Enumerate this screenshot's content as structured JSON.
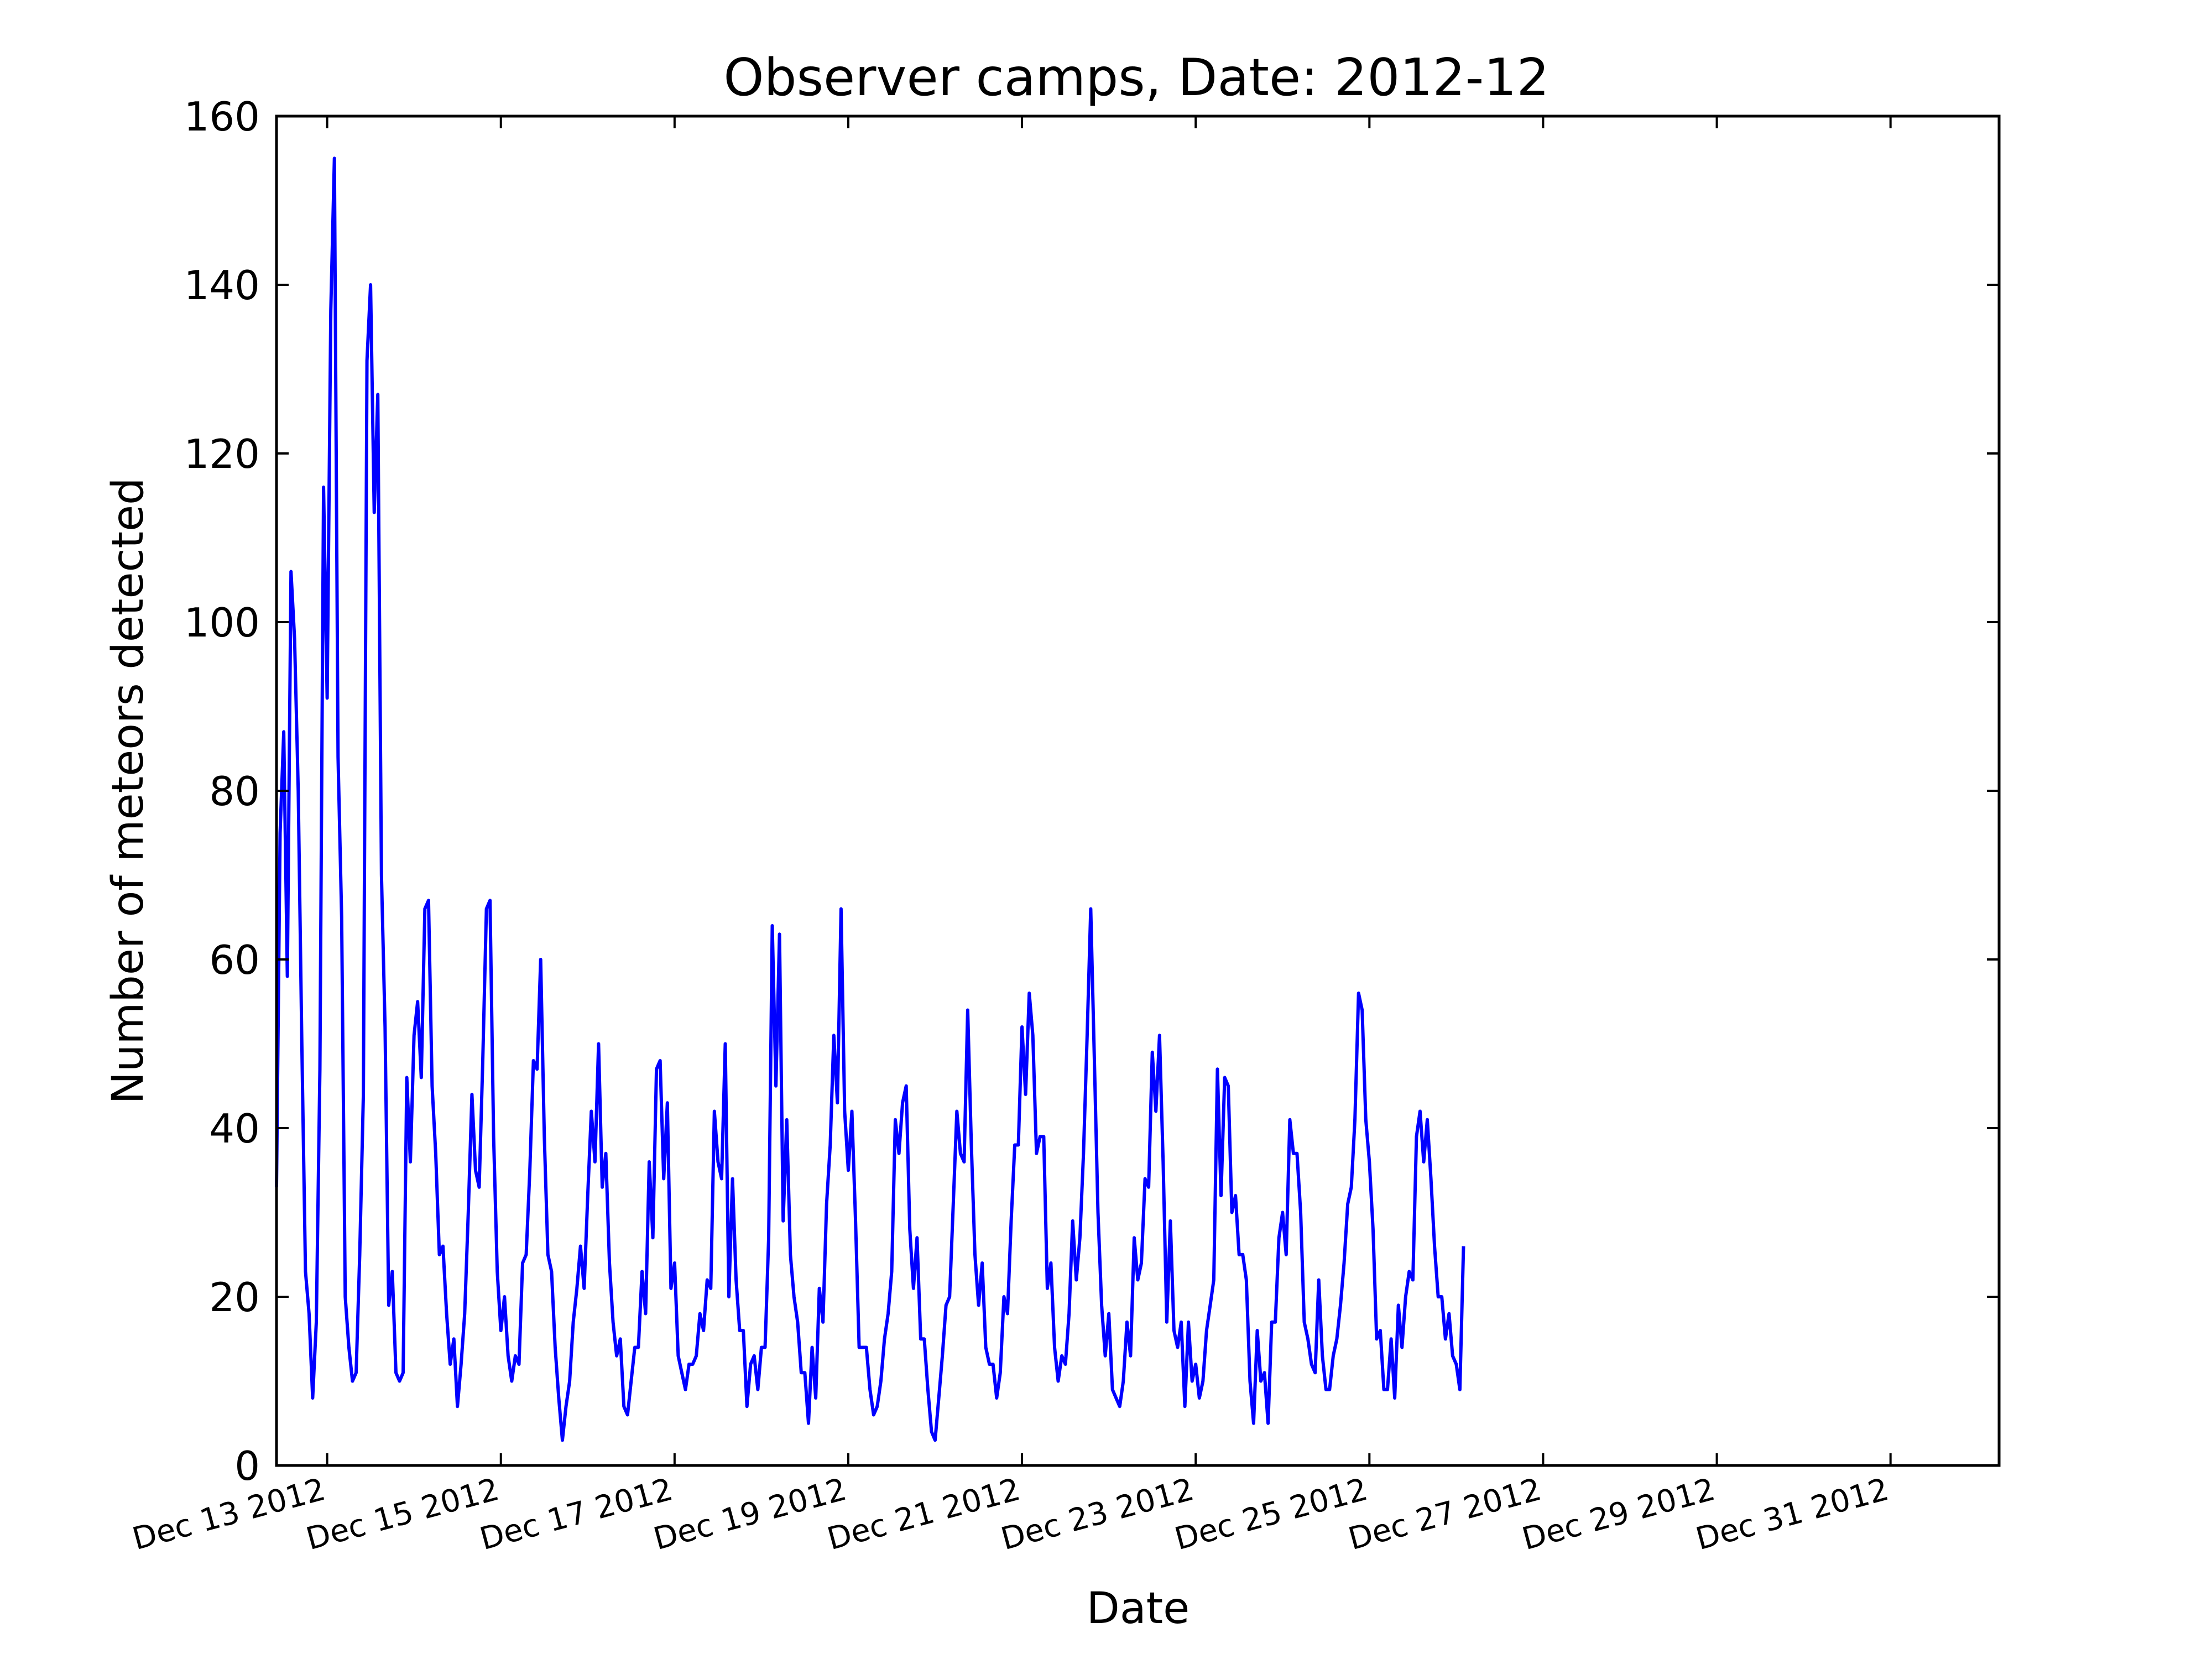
{
  "chart_data": {
    "type": "line",
    "title": "Observer camps, Date: 2012-12",
    "xlabel": "Date",
    "ylabel": "Number of meteors detected",
    "ylim": [
      0,
      160
    ],
    "yticks": [
      0,
      20,
      40,
      60,
      80,
      100,
      120,
      140,
      160
    ],
    "xlim": [
      "2012-12-12 10:00",
      "2013-01-01 06:00"
    ],
    "xtick_labels": [
      "Dec 13 2012",
      "Dec 15 2012",
      "Dec 17 2012",
      "Dec 19 2012",
      "Dec 21 2012",
      "Dec 23 2012",
      "Dec 25 2012",
      "Dec 27 2012",
      "Dec 29 2012",
      "Dec 31 2012"
    ],
    "xtick_dates": [
      "2012-12-13",
      "2012-12-15",
      "2012-12-17",
      "2012-12-19",
      "2012-12-21",
      "2012-12-23",
      "2012-12-25",
      "2012-12-27",
      "2012-12-29",
      "2012-12-31"
    ],
    "grid": false,
    "legend": "none",
    "line_color": "#0000ff",
    "series": [
      {
        "x_start": "2012-12-12 10:00",
        "x_step_hours": 1,
        "values": [
          33,
          75,
          87,
          58,
          106,
          98,
          80,
          50,
          23,
          18,
          8,
          17,
          47,
          116,
          91,
          137,
          155,
          84,
          65,
          20,
          14,
          10,
          11,
          25,
          44,
          131,
          140,
          113,
          127,
          70,
          52,
          19,
          23,
          11,
          10,
          11,
          46,
          36,
          51,
          55,
          46,
          66,
          67,
          45,
          37,
          25,
          26,
          18,
          12,
          15,
          7,
          12,
          18,
          30,
          44,
          35,
          33,
          48,
          66,
          67,
          39,
          23,
          16,
          20,
          13,
          10,
          13,
          12,
          24,
          25,
          35,
          48,
          47,
          60,
          39,
          25,
          23,
          14,
          8,
          3,
          7,
          10,
          17,
          21,
          26,
          21,
          32,
          42,
          36,
          50,
          33,
          37,
          24,
          17,
          13,
          15,
          7,
          6,
          10,
          14,
          14,
          23,
          18,
          36,
          27,
          47,
          48,
          34,
          43,
          21,
          24,
          13,
          11,
          9,
          12,
          12,
          13,
          18,
          16,
          22,
          21,
          42,
          36,
          34,
          50,
          20,
          34,
          22,
          16,
          16,
          7,
          12,
          13,
          9,
          14,
          14,
          27,
          64,
          45,
          63,
          29,
          41,
          25,
          20,
          17,
          11,
          11,
          5,
          14,
          8,
          21,
          17,
          31,
          38,
          51,
          43,
          66,
          42,
          35,
          42,
          29,
          14,
          14,
          14,
          9,
          6,
          7,
          10,
          15,
          18,
          23,
          41,
          37,
          43,
          45,
          28,
          21,
          27,
          15,
          15,
          9,
          4,
          3,
          8,
          13,
          19,
          20,
          31,
          42,
          37,
          36,
          54,
          38,
          25,
          19,
          24,
          14,
          12,
          12,
          8,
          11,
          20,
          18,
          29,
          38,
          38,
          52,
          44,
          56,
          51,
          37,
          39,
          39,
          21,
          24,
          14,
          10,
          13,
          12,
          18,
          29,
          22,
          27,
          37,
          51,
          66,
          48,
          30,
          19,
          13,
          18,
          9,
          8,
          7,
          10,
          17,
          13,
          27,
          22,
          24,
          34,
          33,
          49,
          42,
          51,
          36,
          17,
          29,
          16,
          14,
          17,
          7,
          17,
          10,
          12,
          8,
          10,
          16,
          19,
          22,
          47,
          32,
          46,
          45,
          30,
          32,
          25,
          25,
          22,
          10,
          5,
          16,
          10,
          11,
          5,
          17,
          17,
          27,
          30,
          25,
          41,
          37,
          37,
          30,
          17,
          15,
          12,
          11,
          22,
          13,
          9,
          9,
          13,
          15,
          19,
          24,
          31,
          33,
          41,
          56,
          54,
          41,
          36,
          28,
          15,
          16,
          9,
          9,
          15,
          8,
          19,
          14,
          20,
          23,
          22,
          39,
          42,
          36,
          41,
          34,
          26,
          20,
          20,
          15,
          18,
          13,
          12,
          9,
          26
        ]
      }
    ]
  }
}
